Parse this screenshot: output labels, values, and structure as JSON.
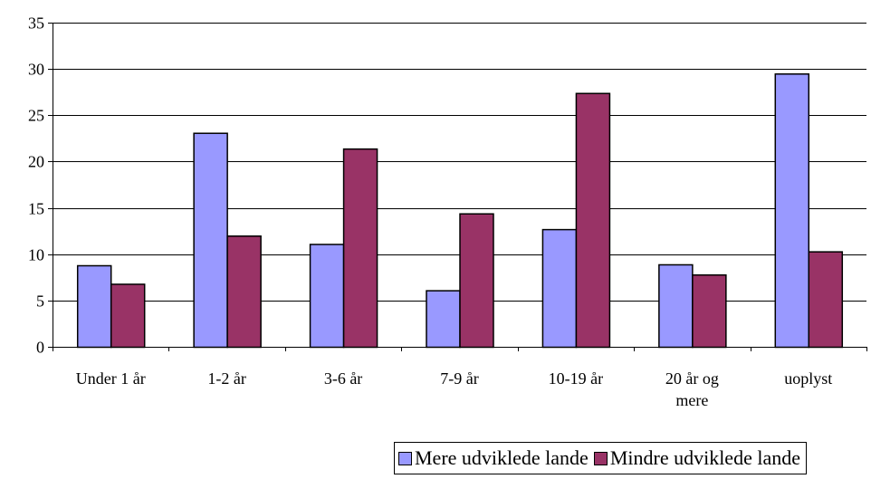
{
  "chart_data": {
    "type": "bar",
    "categories": [
      "Under 1 år",
      "1-2 år",
      "3-6 år",
      "7-9 år",
      "10-19 år",
      "20 år og mere",
      "uoplyst"
    ],
    "category_lines": [
      [
        "Under 1 år"
      ],
      [
        "1-2 år"
      ],
      [
        "3-6 år"
      ],
      [
        "7-9 år"
      ],
      [
        "10-19 år"
      ],
      [
        "20 år og",
        "mere"
      ],
      [
        "uoplyst"
      ]
    ],
    "series": [
      {
        "name": "Mere udviklede lande",
        "color": "#9999ff",
        "values": [
          8.8,
          23.1,
          11.1,
          6.1,
          12.7,
          8.9,
          29.5
        ]
      },
      {
        "name": "Mindre udviklede lande",
        "color": "#993366",
        "values": [
          6.8,
          12.0,
          21.4,
          14.4,
          27.4,
          7.8,
          10.3
        ]
      }
    ],
    "title": "",
    "xlabel": "",
    "ylabel": "",
    "ylim": [
      0,
      35
    ],
    "yticks": [
      0,
      5,
      10,
      15,
      20,
      25,
      30,
      35
    ],
    "grid": true,
    "legend_position": "bottom"
  }
}
